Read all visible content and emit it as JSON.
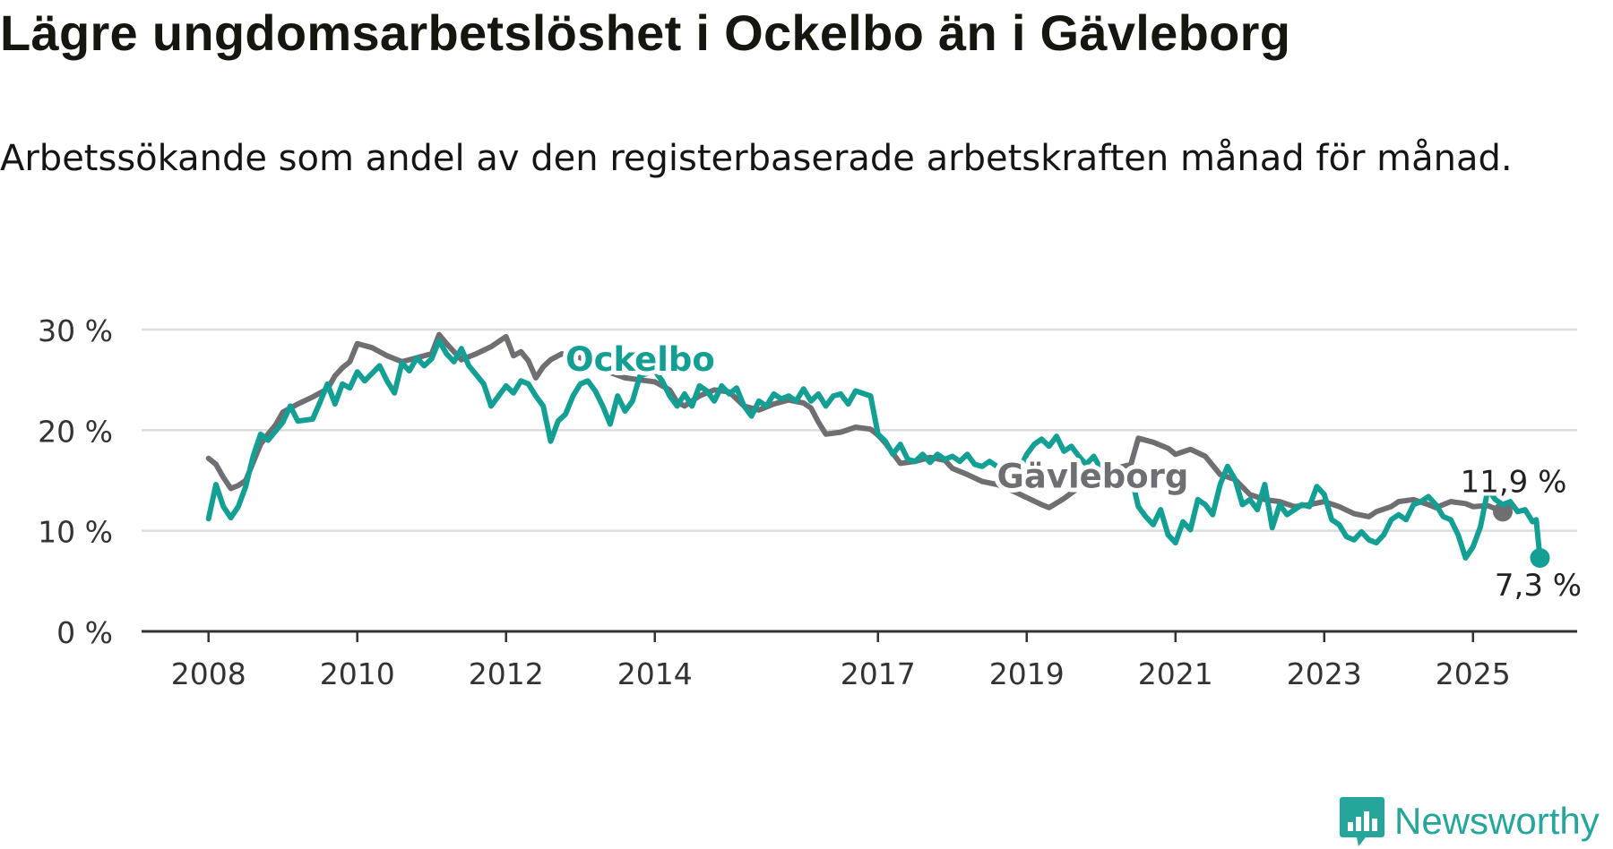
{
  "title": "Lägre ungdomsarbetslöshet i Ockelbo än i Gävleborg",
  "subtitle": "Arbetssökande som andel av den registerbaserade arbetskraften månad för månad.",
  "brand": {
    "name": "Newsworthy",
    "icon": "newsworthy-chart-logo-icon"
  },
  "colors": {
    "ockelbo": "#139f94",
    "gavleborg": "#6e6e73",
    "grid": "#dcdcdc",
    "axis": "#333333"
  },
  "chart_data": {
    "type": "line",
    "title": "Lägre ungdomsarbetslöshet i Ockelbo än i Gävleborg",
    "subtitle": "Arbetssökande som andel av den registerbaserade arbetskraften månad för månad.",
    "xlabel": "",
    "ylabel": "",
    "x_unit": "year",
    "x_ticks": [
      2008,
      2010,
      2012,
      2014,
      2017,
      2019,
      2021,
      2023,
      2025
    ],
    "y_ticks": [
      0,
      10,
      20,
      30
    ],
    "y_tick_labels": [
      "0 %",
      "10 %",
      "20 %",
      "30 %"
    ],
    "ylim": [
      0,
      30
    ],
    "xlim": [
      2007.1,
      2026.4
    ],
    "grid": true,
    "legend": "inline labels",
    "series": [
      {
        "name": "Gävleborg",
        "color": "#6e6e73",
        "end_label": "11,9 %",
        "points": [
          [
            2008.0,
            17.2
          ],
          [
            2008.1,
            16.6
          ],
          [
            2008.2,
            15.3
          ],
          [
            2008.3,
            14.2
          ],
          [
            2008.4,
            14.5
          ],
          [
            2008.5,
            15.0
          ],
          [
            2008.6,
            16.8
          ],
          [
            2008.7,
            18.6
          ],
          [
            2008.8,
            19.6
          ],
          [
            2008.9,
            20.5
          ],
          [
            2009.0,
            21.8
          ],
          [
            2009.2,
            22.6
          ],
          [
            2009.4,
            23.3
          ],
          [
            2009.6,
            24.1
          ],
          [
            2009.7,
            25.4
          ],
          [
            2009.8,
            26.2
          ],
          [
            2009.9,
            26.8
          ],
          [
            2010.0,
            28.6
          ],
          [
            2010.2,
            28.2
          ],
          [
            2010.4,
            27.4
          ],
          [
            2010.6,
            26.8
          ],
          [
            2010.8,
            27.2
          ],
          [
            2011.0,
            27.6
          ],
          [
            2011.1,
            29.5
          ],
          [
            2011.2,
            28.6
          ],
          [
            2011.4,
            27.0
          ],
          [
            2011.6,
            27.6
          ],
          [
            2011.8,
            28.3
          ],
          [
            2012.0,
            29.3
          ],
          [
            2012.1,
            27.4
          ],
          [
            2012.2,
            27.8
          ],
          [
            2012.3,
            26.9
          ],
          [
            2012.4,
            25.2
          ],
          [
            2012.5,
            26.3
          ],
          [
            2012.6,
            27.0
          ],
          [
            2012.75,
            27.6
          ],
          [
            2013.0,
            27.2
          ],
          [
            2013.3,
            26.0
          ],
          [
            2013.6,
            25.2
          ],
          [
            2013.8,
            25.0
          ],
          [
            2014.0,
            24.8
          ],
          [
            2014.2,
            24.0
          ],
          [
            2014.3,
            22.8
          ],
          [
            2014.4,
            22.4
          ],
          [
            2014.6,
            23.4
          ],
          [
            2014.8,
            24.0
          ],
          [
            2015.0,
            23.8
          ],
          [
            2015.2,
            22.4
          ],
          [
            2015.4,
            22.0
          ],
          [
            2015.6,
            22.6
          ],
          [
            2015.8,
            23.0
          ],
          [
            2016.0,
            22.7
          ],
          [
            2016.1,
            22.2
          ],
          [
            2016.2,
            20.8
          ],
          [
            2016.3,
            19.6
          ],
          [
            2016.5,
            19.8
          ],
          [
            2016.7,
            20.3
          ],
          [
            2016.9,
            20.1
          ],
          [
            2017.0,
            19.5
          ],
          [
            2017.1,
            18.7
          ],
          [
            2017.3,
            16.7
          ],
          [
            2017.5,
            16.9
          ],
          [
            2017.7,
            17.3
          ],
          [
            2017.9,
            17.0
          ],
          [
            2018.0,
            16.2
          ],
          [
            2018.2,
            15.6
          ],
          [
            2018.4,
            14.9
          ],
          [
            2018.6,
            14.6
          ],
          [
            2018.8,
            14.0
          ],
          [
            2019.0,
            13.3
          ],
          [
            2019.2,
            12.6
          ],
          [
            2019.3,
            12.3
          ],
          [
            2019.5,
            13.2
          ],
          [
            2019.7,
            14.3
          ],
          [
            2019.9,
            15.6
          ],
          [
            2020.0,
            16.4
          ],
          [
            2020.2,
            16.2
          ],
          [
            2020.4,
            16.6
          ],
          [
            2020.5,
            19.2
          ],
          [
            2020.7,
            18.8
          ],
          [
            2020.9,
            18.2
          ],
          [
            2021.0,
            17.6
          ],
          [
            2021.2,
            18.1
          ],
          [
            2021.4,
            17.4
          ],
          [
            2021.6,
            15.6
          ],
          [
            2021.8,
            15.1
          ],
          [
            2022.0,
            13.6
          ],
          [
            2022.2,
            13.1
          ],
          [
            2022.4,
            12.9
          ],
          [
            2022.6,
            12.4
          ],
          [
            2022.8,
            12.6
          ],
          [
            2023.0,
            12.9
          ],
          [
            2023.2,
            12.4
          ],
          [
            2023.4,
            11.7
          ],
          [
            2023.6,
            11.4
          ],
          [
            2023.7,
            11.9
          ],
          [
            2023.9,
            12.4
          ],
          [
            2024.0,
            12.9
          ],
          [
            2024.2,
            13.1
          ],
          [
            2024.4,
            12.6
          ],
          [
            2024.5,
            12.3
          ],
          [
            2024.7,
            12.9
          ],
          [
            2024.9,
            12.7
          ],
          [
            2025.0,
            12.4
          ],
          [
            2025.2,
            12.5
          ],
          [
            2025.3,
            12.2
          ],
          [
            2025.4,
            11.9
          ]
        ]
      },
      {
        "name": "Ockelbo",
        "color": "#139f94",
        "end_label": "7,3 %",
        "points": [
          [
            2008.0,
            11.2
          ],
          [
            2008.1,
            14.6
          ],
          [
            2008.2,
            12.4
          ],
          [
            2008.3,
            11.3
          ],
          [
            2008.4,
            12.4
          ],
          [
            2008.5,
            14.4
          ],
          [
            2008.6,
            17.4
          ],
          [
            2008.7,
            19.6
          ],
          [
            2008.8,
            19.0
          ],
          [
            2008.9,
            19.9
          ],
          [
            2009.0,
            20.8
          ],
          [
            2009.1,
            22.4
          ],
          [
            2009.2,
            20.9
          ],
          [
            2009.4,
            21.1
          ],
          [
            2009.5,
            22.8
          ],
          [
            2009.6,
            24.6
          ],
          [
            2009.7,
            22.6
          ],
          [
            2009.8,
            24.6
          ],
          [
            2009.9,
            24.2
          ],
          [
            2010.0,
            25.8
          ],
          [
            2010.1,
            24.9
          ],
          [
            2010.3,
            26.4
          ],
          [
            2010.4,
            24.9
          ],
          [
            2010.5,
            23.7
          ],
          [
            2010.6,
            26.7
          ],
          [
            2010.7,
            25.9
          ],
          [
            2010.8,
            27.2
          ],
          [
            2010.9,
            26.4
          ],
          [
            2011.0,
            27.1
          ],
          [
            2011.1,
            28.9
          ],
          [
            2011.2,
            27.6
          ],
          [
            2011.3,
            26.8
          ],
          [
            2011.4,
            28.1
          ],
          [
            2011.5,
            26.4
          ],
          [
            2011.7,
            24.6
          ],
          [
            2011.8,
            22.4
          ],
          [
            2011.9,
            23.4
          ],
          [
            2012.0,
            24.4
          ],
          [
            2012.1,
            23.7
          ],
          [
            2012.2,
            24.9
          ],
          [
            2012.3,
            24.6
          ],
          [
            2012.4,
            23.4
          ],
          [
            2012.5,
            22.4
          ],
          [
            2012.6,
            18.9
          ],
          [
            2012.7,
            20.9
          ],
          [
            2012.8,
            21.6
          ],
          [
            2012.9,
            23.4
          ],
          [
            2013.0,
            24.6
          ],
          [
            2013.1,
            24.9
          ],
          [
            2013.2,
            23.9
          ],
          [
            2013.3,
            22.4
          ],
          [
            2013.4,
            20.6
          ],
          [
            2013.5,
            23.4
          ],
          [
            2013.6,
            21.9
          ],
          [
            2013.7,
            22.9
          ],
          [
            2013.8,
            25.4
          ],
          [
            2014.0,
            25.9
          ],
          [
            2014.1,
            24.9
          ],
          [
            2014.2,
            23.4
          ],
          [
            2014.3,
            22.4
          ],
          [
            2014.4,
            23.6
          ],
          [
            2014.5,
            22.4
          ],
          [
            2014.6,
            24.4
          ],
          [
            2014.7,
            23.9
          ],
          [
            2014.8,
            22.9
          ],
          [
            2014.9,
            24.4
          ],
          [
            2015.0,
            23.6
          ],
          [
            2015.1,
            24.2
          ],
          [
            2015.2,
            22.4
          ],
          [
            2015.3,
            21.4
          ],
          [
            2015.4,
            22.9
          ],
          [
            2015.5,
            22.4
          ],
          [
            2015.6,
            23.6
          ],
          [
            2015.7,
            23.1
          ],
          [
            2015.8,
            23.4
          ],
          [
            2015.9,
            22.9
          ],
          [
            2016.0,
            24.1
          ],
          [
            2016.1,
            22.9
          ],
          [
            2016.2,
            23.6
          ],
          [
            2016.3,
            22.4
          ],
          [
            2016.4,
            23.4
          ],
          [
            2016.5,
            23.6
          ],
          [
            2016.6,
            22.6
          ],
          [
            2016.7,
            23.9
          ],
          [
            2016.9,
            23.4
          ],
          [
            2017.0,
            19.6
          ],
          [
            2017.1,
            18.9
          ],
          [
            2017.2,
            17.6
          ],
          [
            2017.3,
            18.6
          ],
          [
            2017.4,
            17.1
          ],
          [
            2017.5,
            16.9
          ],
          [
            2017.6,
            17.6
          ],
          [
            2017.7,
            16.8
          ],
          [
            2017.8,
            17.6
          ],
          [
            2017.9,
            17.1
          ],
          [
            2018.0,
            17.4
          ],
          [
            2018.1,
            16.9
          ],
          [
            2018.2,
            17.6
          ],
          [
            2018.3,
            16.6
          ],
          [
            2018.4,
            16.4
          ],
          [
            2018.5,
            16.9
          ],
          [
            2018.6,
            16.4
          ],
          [
            2018.7,
            15.4
          ],
          [
            2018.8,
            16.6
          ],
          [
            2018.9,
            16.1
          ],
          [
            2019.0,
            17.6
          ],
          [
            2019.1,
            18.6
          ],
          [
            2019.2,
            19.1
          ],
          [
            2019.3,
            18.4
          ],
          [
            2019.4,
            19.4
          ],
          [
            2019.5,
            17.9
          ],
          [
            2019.6,
            18.4
          ],
          [
            2019.7,
            17.4
          ],
          [
            2019.8,
            16.6
          ],
          [
            2019.9,
            17.4
          ],
          [
            2020.0,
            16.1
          ],
          [
            2020.1,
            15.4
          ],
          [
            2020.2,
            15.9
          ],
          [
            2020.3,
            14.9
          ],
          [
            2020.4,
            15.6
          ],
          [
            2020.5,
            12.4
          ],
          [
            2020.6,
            11.4
          ],
          [
            2020.7,
            10.6
          ],
          [
            2020.8,
            12.1
          ],
          [
            2020.9,
            9.6
          ],
          [
            2021.0,
            8.8
          ],
          [
            2021.1,
            10.9
          ],
          [
            2021.2,
            10.1
          ],
          [
            2021.3,
            13.1
          ],
          [
            2021.4,
            12.6
          ],
          [
            2021.5,
            11.6
          ],
          [
            2021.6,
            14.6
          ],
          [
            2021.7,
            16.4
          ],
          [
            2021.8,
            15.1
          ],
          [
            2021.9,
            12.6
          ],
          [
            2022.0,
            13.1
          ],
          [
            2022.1,
            12.1
          ],
          [
            2022.2,
            14.6
          ],
          [
            2022.3,
            10.3
          ],
          [
            2022.4,
            12.6
          ],
          [
            2022.5,
            11.6
          ],
          [
            2022.6,
            12.1
          ],
          [
            2022.7,
            12.6
          ],
          [
            2022.8,
            12.4
          ],
          [
            2022.9,
            14.4
          ],
          [
            2023.0,
            13.6
          ],
          [
            2023.1,
            11.1
          ],
          [
            2023.2,
            10.6
          ],
          [
            2023.3,
            9.4
          ],
          [
            2023.4,
            9.1
          ],
          [
            2023.5,
            9.9
          ],
          [
            2023.6,
            9.1
          ],
          [
            2023.7,
            8.8
          ],
          [
            2023.8,
            9.6
          ],
          [
            2023.9,
            11.1
          ],
          [
            2024.0,
            11.6
          ],
          [
            2024.1,
            11.1
          ],
          [
            2024.2,
            12.6
          ],
          [
            2024.3,
            12.9
          ],
          [
            2024.4,
            13.4
          ],
          [
            2024.5,
            12.6
          ],
          [
            2024.6,
            11.4
          ],
          [
            2024.7,
            11.1
          ],
          [
            2024.8,
            9.6
          ],
          [
            2024.9,
            7.3
          ],
          [
            2025.0,
            8.4
          ],
          [
            2025.1,
            10.4
          ],
          [
            2025.2,
            14.1
          ],
          [
            2025.3,
            13.1
          ],
          [
            2025.4,
            12.6
          ],
          [
            2025.5,
            12.9
          ],
          [
            2025.6,
            11.9
          ],
          [
            2025.7,
            12.1
          ],
          [
            2025.8,
            10.9
          ],
          [
            2025.85,
            11.1
          ],
          [
            2025.9,
            7.3
          ]
        ]
      }
    ],
    "labels": [
      {
        "series": "Ockelbo",
        "text": "Ockelbo",
        "at": [
          2012.8,
          25.9
        ]
      },
      {
        "series": "Gävleborg",
        "text": "Gävleborg",
        "at": [
          2018.6,
          14.3
        ]
      }
    ]
  }
}
